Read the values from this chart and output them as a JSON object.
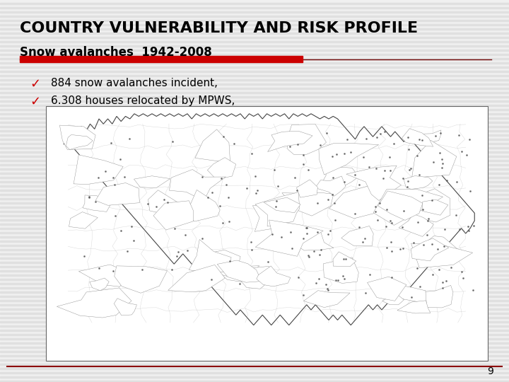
{
  "title": "COUNTRY VULNERABILITY AND RISK PROFILE",
  "subtitle": "Snow avalanches  1942-2008",
  "bullet1": "884 snow avalanches incident,",
  "bullet2": "6.308 houses relocated by MPWS,",
  "page_number": "9",
  "bg_color": "#f0f0f0",
  "stripe_color": "#e0e0e0",
  "title_color": "#000000",
  "subtitle_color": "#000000",
  "bar_red": "#cc0000",
  "bar_dark": "#6b0000",
  "line_color": "#8b0000",
  "check_color": "#cc0000",
  "map_box_facecolor": "#ffffff",
  "map_outline_color": "#444444",
  "map_border_color": "#888888",
  "title_fontsize": 16,
  "subtitle_fontsize": 12,
  "bullet_fontsize": 11,
  "page_fontsize": 10
}
